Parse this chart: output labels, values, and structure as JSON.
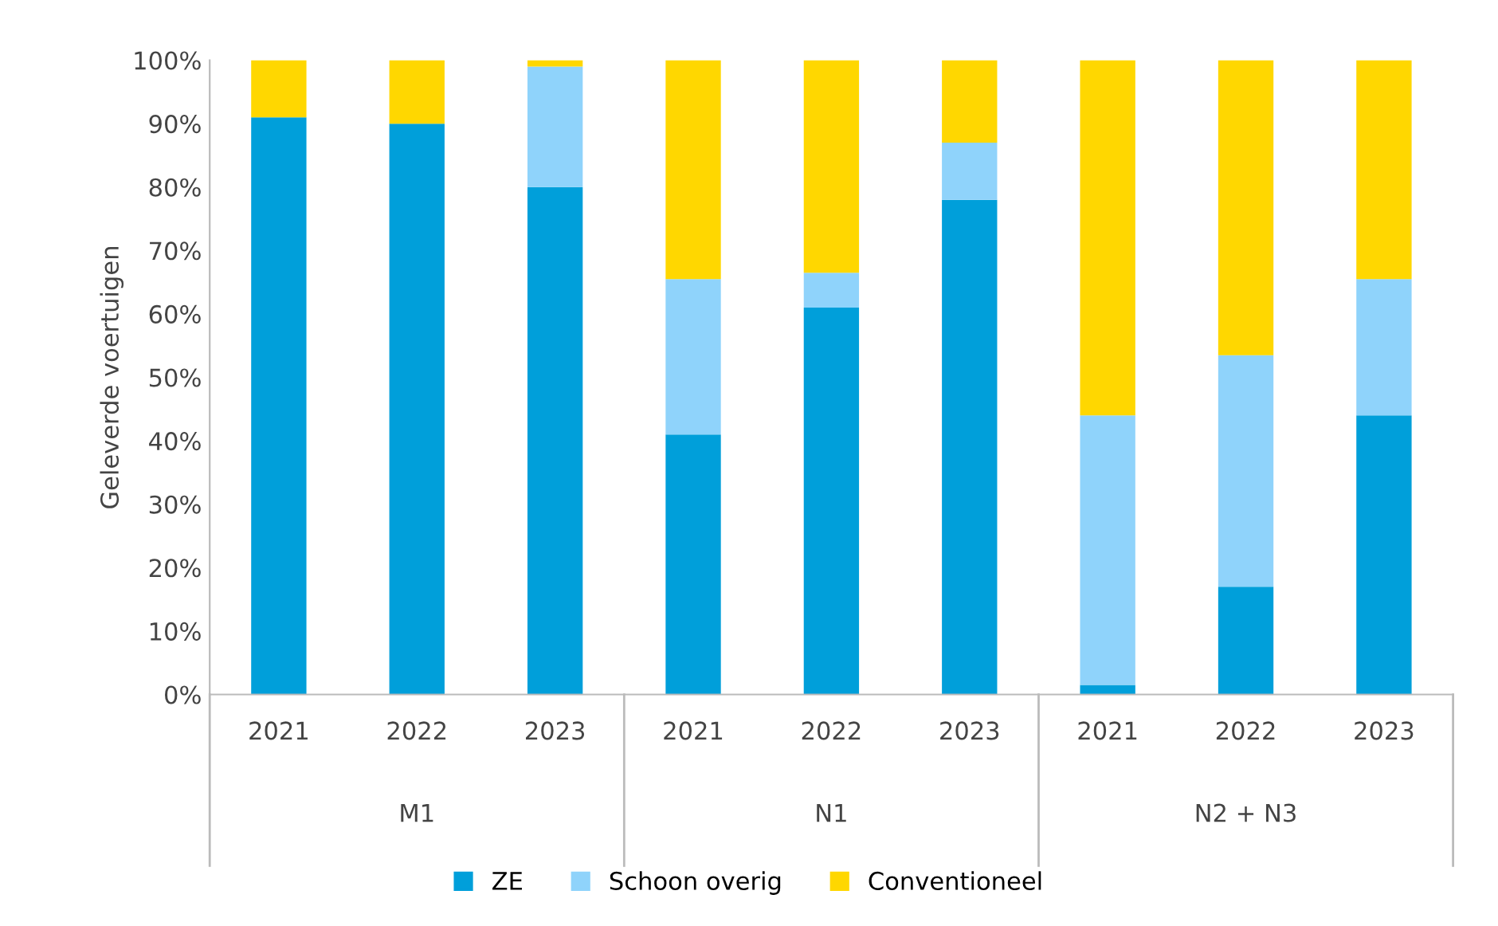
{
  "chart_data": {
    "type": "bar",
    "stacked": true,
    "ylabel": "Geleverde voertuigen",
    "categories": [
      "2021",
      "2022",
      "2023",
      "2021",
      "2022",
      "2023",
      "2021",
      "2022",
      "2023"
    ],
    "annotations": [
      "M1",
      "N1",
      "N2 + N3"
    ],
    "series": [
      {
        "name": "ZE",
        "color": "#009fda",
        "values": [
          91,
          90,
          80,
          41,
          61,
          78,
          1.5,
          17,
          44
        ]
      },
      {
        "name": "Schoon overig",
        "color": "#8fd3fb",
        "values": [
          0,
          0,
          19,
          24.5,
          5.5,
          9,
          42.5,
          36.5,
          21.5
        ]
      },
      {
        "name": "Conventioneel",
        "color": "#ffd700",
        "values": [
          9,
          10,
          1,
          34.5,
          33.5,
          13,
          56,
          46.5,
          34.5
        ]
      }
    ],
    "ylim": [
      0,
      100
    ],
    "yticks": [
      {
        "value": 0,
        "label": "0%"
      },
      {
        "value": 10,
        "label": "10%"
      },
      {
        "value": 20,
        "label": "20%"
      },
      {
        "value": 30,
        "label": "30%"
      },
      {
        "value": 40,
        "label": "40%"
      },
      {
        "value": 50,
        "label": "50%"
      },
      {
        "value": 60,
        "label": "60%"
      },
      {
        "value": 70,
        "label": "70%"
      },
      {
        "value": 80,
        "label": "80%"
      },
      {
        "value": 90,
        "label": "90%"
      },
      {
        "value": 100,
        "label": "100%"
      }
    ],
    "grid": false,
    "legend": "bottom"
  }
}
